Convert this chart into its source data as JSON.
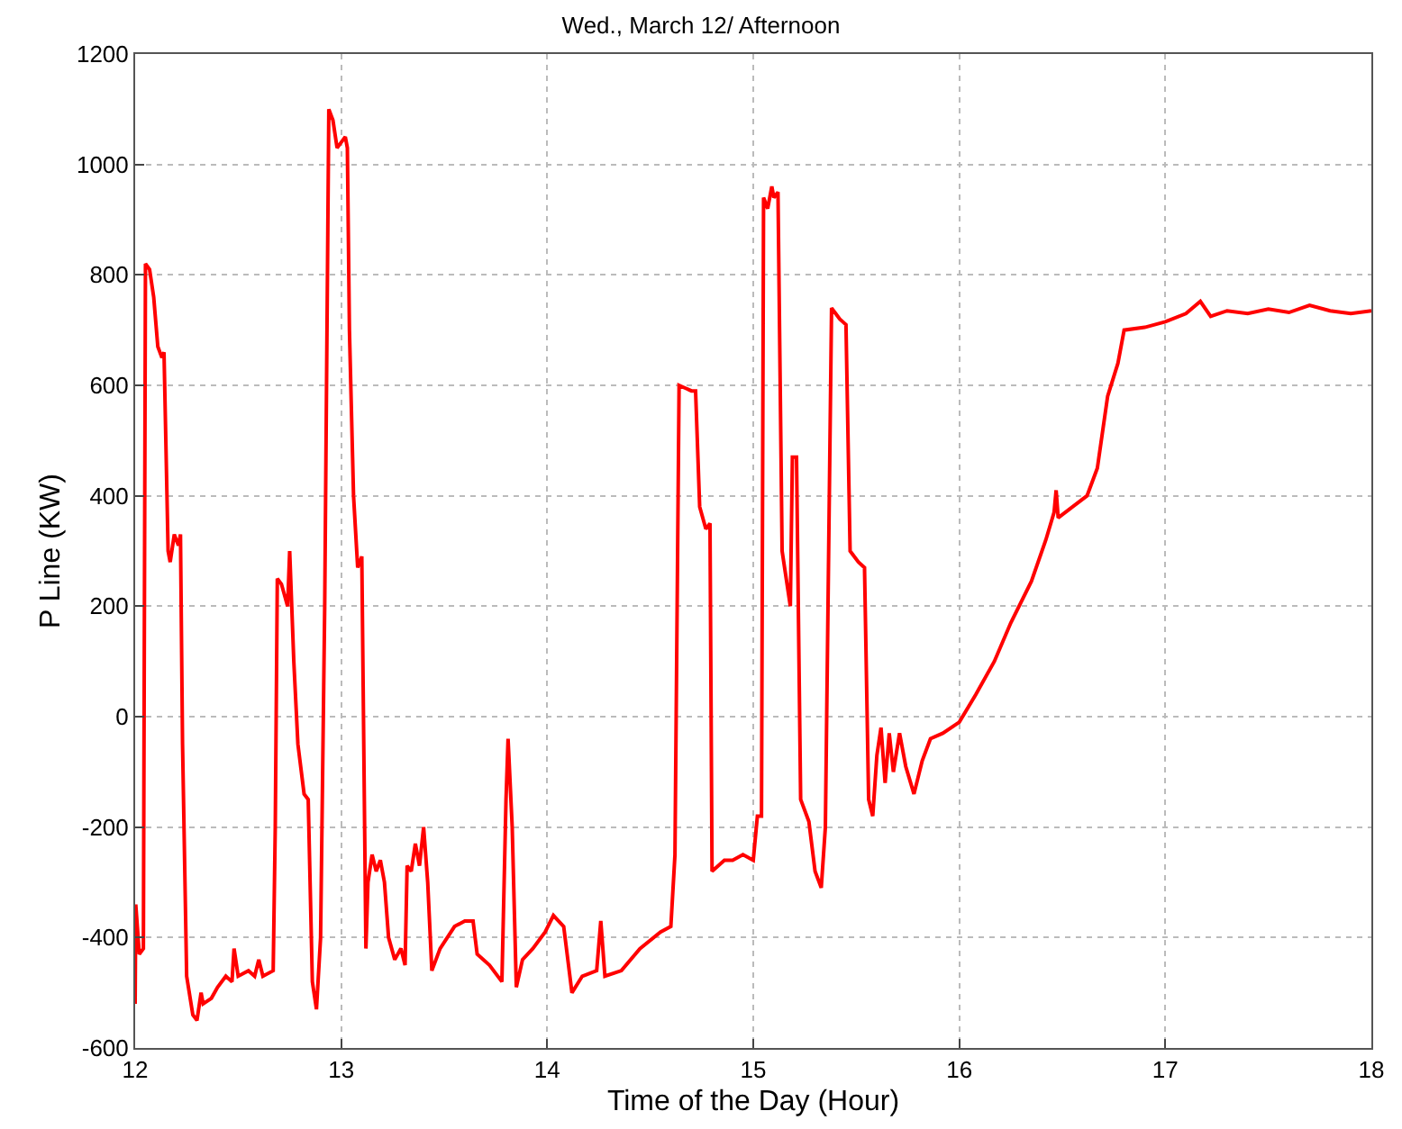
{
  "chart_data": {
    "type": "line",
    "title": "Wed., March 12/ Afternoon",
    "xlabel": "Time of the Day (Hour)",
    "ylabel": "P Line (KW)",
    "xlim": [
      12,
      18
    ],
    "xticks": [
      12,
      13,
      14,
      15,
      16,
      17,
      18
    ],
    "ylim": [
      -600,
      1200
    ],
    "yticks": [
      -600,
      -400,
      -200,
      0,
      200,
      400,
      600,
      800,
      1000,
      1200
    ],
    "grid": true,
    "marker": "none",
    "line_style": "solid",
    "series": [
      {
        "color": "#ff0000",
        "x": [
          12.0,
          12.003,
          12.02,
          12.04,
          12.05,
          12.07,
          12.09,
          12.11,
          12.13,
          12.14,
          12.16,
          12.17,
          12.19,
          12.21,
          12.22,
          12.23,
          12.25,
          12.28,
          12.3,
          12.32,
          12.33,
          12.37,
          12.4,
          12.44,
          12.47,
          12.48,
          12.5,
          12.55,
          12.58,
          12.6,
          12.62,
          12.67,
          12.68,
          12.69,
          12.71,
          12.74,
          12.75,
          12.77,
          12.79,
          12.82,
          12.84,
          12.86,
          12.88,
          12.9,
          12.92,
          12.94,
          12.96,
          12.98,
          13.0,
          13.02,
          13.03,
          13.04,
          13.06,
          13.08,
          13.1,
          13.12,
          13.13,
          13.15,
          13.17,
          13.19,
          13.21,
          13.23,
          13.26,
          13.29,
          13.31,
          13.32,
          13.34,
          13.36,
          13.38,
          13.4,
          13.42,
          13.44,
          13.48,
          13.55,
          13.6,
          13.64,
          13.66,
          13.72,
          13.78,
          13.8,
          13.81,
          13.83,
          13.85,
          13.88,
          13.93,
          13.99,
          14.03,
          14.08,
          14.12,
          14.17,
          14.24,
          14.26,
          14.28,
          14.36,
          14.45,
          14.55,
          14.6,
          14.62,
          14.64,
          14.7,
          14.72,
          14.74,
          14.77,
          14.79,
          14.8,
          14.86,
          14.9,
          14.95,
          15.0,
          15.02,
          15.04,
          15.05,
          15.07,
          15.09,
          15.1,
          15.12,
          15.14,
          15.18,
          15.19,
          15.21,
          15.23,
          15.27,
          15.3,
          15.33,
          15.35,
          15.38,
          15.4,
          15.42,
          15.45,
          15.47,
          15.51,
          15.54,
          15.56,
          15.58,
          15.6,
          15.62,
          15.64,
          15.66,
          15.68,
          15.71,
          15.74,
          15.78,
          15.82,
          15.86,
          15.92,
          16.0,
          16.08,
          16.17,
          16.25,
          16.35,
          16.42,
          16.46,
          16.47,
          16.48,
          16.55,
          16.62,
          16.67,
          16.72,
          16.77,
          16.8,
          16.9,
          17.0,
          17.1,
          17.17,
          17.22,
          17.3,
          17.4,
          17.5,
          17.6,
          17.7,
          17.8,
          17.9,
          18.0
        ],
        "values": [
          -520,
          -340,
          -430,
          -420,
          820,
          810,
          760,
          670,
          650,
          660,
          300,
          280,
          330,
          310,
          330,
          -50,
          -470,
          -540,
          -550,
          -500,
          -520,
          -510,
          -490,
          -470,
          -480,
          -420,
          -470,
          -460,
          -470,
          -440,
          -470,
          -460,
          -200,
          250,
          240,
          200,
          300,
          100,
          -50,
          -140,
          -150,
          -480,
          -530,
          -400,
          200,
          1100,
          1080,
          1030,
          1040,
          1050,
          1030,
          700,
          400,
          270,
          290,
          -420,
          -300,
          -250,
          -280,
          -260,
          -300,
          -400,
          -440,
          -420,
          -450,
          -270,
          -280,
          -230,
          -270,
          -200,
          -300,
          -460,
          -420,
          -380,
          -370,
          -370,
          -430,
          -450,
          -480,
          -150,
          -40,
          -200,
          -490,
          -440,
          -420,
          -390,
          -360,
          -380,
          -500,
          -470,
          -460,
          -370,
          -470,
          -460,
          -420,
          -390,
          -380,
          -250,
          600,
          590,
          590,
          380,
          340,
          350,
          -280,
          -260,
          -260,
          -250,
          -260,
          -180,
          -180,
          940,
          920,
          960,
          940,
          950,
          300,
          200,
          470,
          470,
          -150,
          -190,
          -280,
          -310,
          -200,
          740,
          730,
          720,
          710,
          300,
          280,
          270,
          -150,
          -180,
          -70,
          -20,
          -120,
          -30,
          -100,
          -30,
          -90,
          -140,
          -80,
          -40,
          -30,
          -10,
          40,
          100,
          170,
          245,
          320,
          370,
          410,
          360,
          380,
          400,
          450,
          580,
          640,
          700,
          705,
          715,
          730,
          752,
          725,
          735,
          730,
          738,
          732,
          745,
          735,
          730,
          735
        ]
      }
    ]
  }
}
